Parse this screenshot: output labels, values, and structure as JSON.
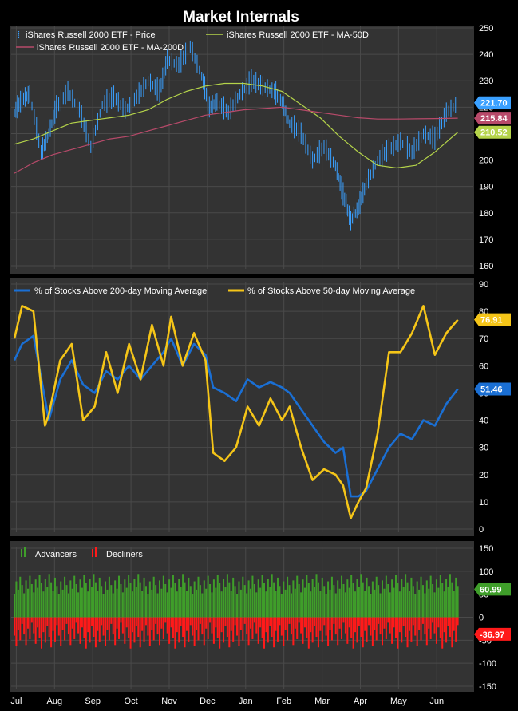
{
  "title": "Market Internals",
  "colors": {
    "background": "#000000",
    "panel": "#333333",
    "grid": "#4a4a4a",
    "text": "#ffffff",
    "price": "#3aa0ff",
    "ma50": "#b5d44a",
    "ma200": "#b84a6a",
    "above200": "#1a6fd4",
    "above50": "#f5c518",
    "advancers": "#3f9e2a",
    "decliners": "#ff1a1a"
  },
  "x_axis_months": [
    "Jul",
    "Aug",
    "Sep",
    "Oct",
    "Nov",
    "Dec",
    "Jan",
    "Feb",
    "Mar",
    "Apr",
    "May",
    "Jun"
  ],
  "chart_data": [
    {
      "type": "line",
      "legend": [
        {
          "name": "iShares Russell 2000 ETF - Price",
          "icon": "price-bar-icon"
        },
        {
          "name": "iShares Russell 2000 ETF - MA-50D",
          "icon": "line-icon"
        },
        {
          "name": "iShares Russell 2000 ETF - MA-200D",
          "icon": "line-icon"
        }
      ],
      "ylim": [
        160,
        250
      ],
      "yticks": [
        160,
        170,
        180,
        190,
        200,
        210,
        220,
        230,
        240,
        250
      ],
      "grid": true,
      "x_unit": "months since start of July",
      "series": [
        {
          "name": "iShares Russell 2000 ETF - Price",
          "x": [
            0,
            0.2,
            0.4,
            0.7,
            0.9,
            1.1,
            1.4,
            1.7,
            2.0,
            2.3,
            2.6,
            2.9,
            3.2,
            3.5,
            3.8,
            4.0,
            4.3,
            4.6,
            4.9,
            5.1,
            5.3,
            5.6,
            5.9,
            6.2,
            6.5,
            6.8,
            7.0,
            7.2,
            7.5,
            7.8,
            8.1,
            8.4,
            8.6,
            8.8,
            9.0,
            9.2,
            9.5,
            9.8,
            10.1,
            10.4,
            10.7,
            11.0,
            11.3,
            11.6
          ],
          "values": [
            218,
            223,
            225,
            203,
            210,
            220,
            226,
            219,
            205,
            221,
            224,
            219,
            224,
            230,
            226,
            238,
            236,
            243,
            232,
            220,
            222,
            218,
            225,
            230,
            228,
            226,
            222,
            214,
            210,
            200,
            205,
            198,
            187,
            177,
            182,
            191,
            200,
            204,
            207,
            203,
            210,
            208,
            218,
            221.7
          ],
          "last_label": "221.70"
        },
        {
          "name": "iShares Russell 2000 ETF - MA-50D",
          "x": [
            0,
            0.5,
            1.0,
            1.5,
            2.0,
            2.5,
            3.0,
            3.5,
            4.0,
            4.5,
            5.0,
            5.5,
            6.0,
            6.5,
            7.0,
            7.5,
            8.0,
            8.5,
            9.0,
            9.5,
            10.0,
            10.5,
            11.0,
            11.6
          ],
          "values": [
            206,
            208,
            211,
            214,
            215,
            216,
            217,
            219,
            223,
            226,
            228,
            229,
            229,
            228,
            226,
            221,
            216,
            209,
            203,
            198,
            197,
            198,
            203,
            210.52
          ],
          "last_label": "210.52"
        },
        {
          "name": "iShares Russell 2000 ETF - MA-200D",
          "x": [
            0,
            0.5,
            1.0,
            1.5,
            2.0,
            2.5,
            3.0,
            3.5,
            4.0,
            4.5,
            5.0,
            5.5,
            6.0,
            6.5,
            7.0,
            7.5,
            8.0,
            8.5,
            9.0,
            9.5,
            10.0,
            10.5,
            11.0,
            11.6
          ],
          "values": [
            195,
            199,
            202,
            204,
            206,
            208,
            209,
            211,
            213,
            215,
            217,
            218,
            219,
            219.5,
            220,
            219,
            218,
            217,
            216,
            215.5,
            215.5,
            215.6,
            215.7,
            215.84
          ],
          "last_label": "215.84"
        }
      ]
    },
    {
      "type": "line",
      "legend": [
        {
          "name": "% of Stocks Above 200-day Moving Average",
          "icon": "line-icon"
        },
        {
          "name": "% of Stocks Above 50-day Moving Average",
          "icon": "line-icon"
        }
      ],
      "ylim": [
        0,
        90
      ],
      "yticks": [
        0,
        10,
        20,
        30,
        40,
        50,
        60,
        70,
        80,
        90
      ],
      "grid": true,
      "x_unit": "months since start of July",
      "series": [
        {
          "name": "% of Stocks Above 200-day Moving Average",
          "x": [
            0,
            0.2,
            0.5,
            0.8,
            0.9,
            1.2,
            1.5,
            1.8,
            2.1,
            2.4,
            2.7,
            3.0,
            3.3,
            3.6,
            3.9,
            4.1,
            4.4,
            4.7,
            5.0,
            5.2,
            5.5,
            5.8,
            6.1,
            6.4,
            6.7,
            7.0,
            7.2,
            7.5,
            7.8,
            8.1,
            8.4,
            8.6,
            8.8,
            9.0,
            9.2,
            9.5,
            9.8,
            10.1,
            10.4,
            10.7,
            11.0,
            11.3,
            11.6
          ],
          "values": [
            62,
            68,
            71,
            48,
            40,
            55,
            62,
            53,
            50,
            58,
            55,
            60,
            55,
            60,
            65,
            70,
            60,
            68,
            64,
            52,
            50,
            47,
            55,
            52,
            54,
            52,
            50,
            44,
            38,
            32,
            28,
            30,
            12,
            12,
            14,
            22,
            30,
            35,
            33,
            40,
            38,
            46,
            51.46
          ],
          "last_label": "51.46"
        },
        {
          "name": "% of Stocks Above 50-day Moving Average",
          "x": [
            0,
            0.2,
            0.5,
            0.8,
            0.9,
            1.2,
            1.5,
            1.8,
            2.1,
            2.4,
            2.7,
            3.0,
            3.3,
            3.6,
            3.9,
            4.1,
            4.4,
            4.7,
            5.0,
            5.2,
            5.5,
            5.8,
            6.1,
            6.4,
            6.7,
            7.0,
            7.2,
            7.5,
            7.8,
            8.1,
            8.4,
            8.6,
            8.8,
            9.0,
            9.2,
            9.5,
            9.8,
            10.1,
            10.4,
            10.7,
            11.0,
            11.3,
            11.6
          ],
          "values": [
            70,
            82,
            80,
            38,
            42,
            62,
            68,
            40,
            45,
            65,
            50,
            68,
            55,
            75,
            60,
            78,
            60,
            72,
            62,
            28,
            25,
            30,
            45,
            38,
            48,
            40,
            45,
            30,
            18,
            22,
            20,
            16,
            4,
            10,
            15,
            35,
            65,
            65,
            72,
            82,
            64,
            72,
            76.91
          ],
          "last_label": "76.91"
        }
      ]
    },
    {
      "type": "bar",
      "legend": [
        {
          "name": "Advancers",
          "icon": "bar-icon"
        },
        {
          "name": "Decliners",
          "icon": "bar-icon"
        }
      ],
      "ylim": [
        -150,
        150
      ],
      "yticks": [
        -150,
        -100,
        -50,
        0,
        50,
        100,
        150
      ],
      "grid": true,
      "x_unit": "months since start of July",
      "series": [
        {
          "name": "Advancers",
          "approx_level": 72,
          "x": [
            0,
            1,
            2,
            3,
            4,
            5,
            6,
            7,
            8,
            9,
            10,
            11,
            11.6
          ],
          "values": [
            70,
            75,
            72,
            68,
            74,
            70,
            72,
            66,
            70,
            76,
            72,
            74,
            60.99
          ],
          "last_label": "60.99"
        },
        {
          "name": "Decliners",
          "approx_level": -40,
          "x": [
            0,
            1,
            2,
            3,
            4,
            5,
            6,
            7,
            8,
            9,
            10,
            11,
            11.6
          ],
          "values": [
            -35,
            -40,
            -38,
            -42,
            -37,
            -40,
            -36,
            -44,
            -40,
            -38,
            -41,
            -39,
            -36.97
          ],
          "last_label": "-36.97"
        }
      ]
    }
  ]
}
